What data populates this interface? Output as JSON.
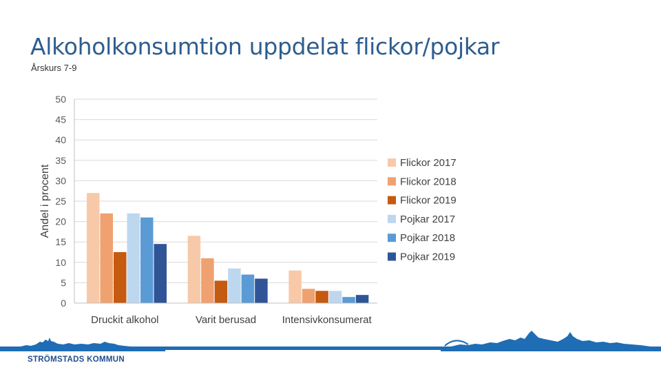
{
  "slide": {
    "title": "Alkoholkonsumtion uppdelat flickor/pojkar",
    "subtitle": "Årskurs 7-9",
    "brand": "STRÖMSTADS KOMMUN"
  },
  "colors": {
    "title": "#2e5d8f",
    "band": "#1e6db5"
  },
  "chart_data": {
    "type": "bar",
    "title": "",
    "xlabel": "",
    "ylabel": "Andel i procent",
    "ylim": [
      0,
      50
    ],
    "yticks": [
      0,
      5,
      10,
      15,
      20,
      25,
      30,
      35,
      40,
      45,
      50
    ],
    "grid": true,
    "legend_position": "right",
    "categories": [
      "Druckit alkohol",
      "Varit berusad",
      "Intensivkonsumerat"
    ],
    "series": [
      {
        "name": "Flickor 2017",
        "color": "#f8c9a8",
        "values": [
          27,
          16.5,
          8
        ]
      },
      {
        "name": "Flickor 2018",
        "color": "#f0a170",
        "values": [
          22,
          11,
          3.5
        ]
      },
      {
        "name": "Flickor 2019",
        "color": "#c55a11",
        "values": [
          12.5,
          5.5,
          3
        ]
      },
      {
        "name": "Pojkar 2017",
        "color": "#bdd7ee",
        "values": [
          22,
          8.5,
          3
        ]
      },
      {
        "name": "Pojkar 2018",
        "color": "#5b9bd5",
        "values": [
          21,
          7,
          1.5
        ]
      },
      {
        "name": "Pojkar 2019",
        "color": "#2f5597",
        "values": [
          14.5,
          6,
          2
        ]
      }
    ]
  }
}
